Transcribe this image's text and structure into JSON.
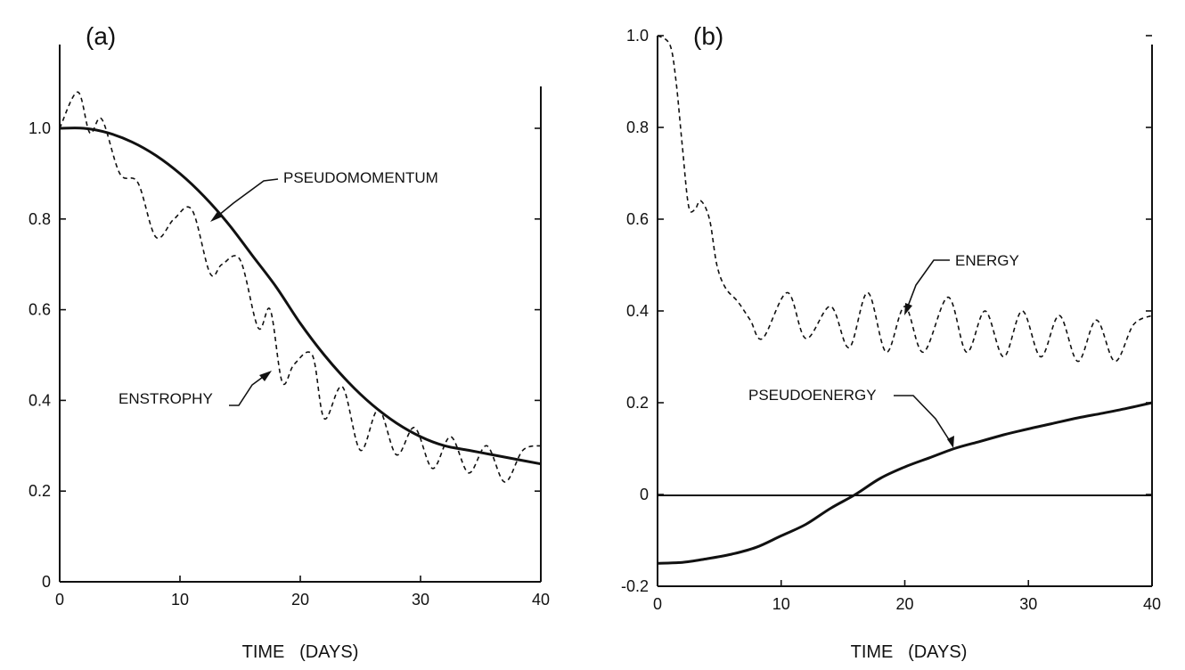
{
  "chart_data": [
    {
      "type": "line",
      "panel_label": "(a)",
      "xlabel": "TIME   (DAYS)",
      "ylabel": "",
      "xlim": [
        0,
        40
      ],
      "ylim": [
        0,
        1.0
      ],
      "xticks": [
        "0",
        "10",
        "20",
        "30",
        "40"
      ],
      "yticks": [
        "0",
        "0.2",
        "0.4",
        "0.6",
        "0.8",
        "1.0"
      ],
      "grid": false,
      "series": [
        {
          "name": "PSEUDOMOMENTUM",
          "style": "solid",
          "x": [
            0,
            2,
            4,
            6,
            8,
            10,
            12,
            14,
            16,
            18,
            20,
            22,
            24,
            26,
            28,
            30,
            32,
            34,
            36,
            38,
            40
          ],
          "y": [
            1.0,
            1.0,
            0.99,
            0.97,
            0.94,
            0.9,
            0.85,
            0.79,
            0.72,
            0.65,
            0.57,
            0.5,
            0.44,
            0.39,
            0.35,
            0.32,
            0.3,
            0.29,
            0.28,
            0.27,
            0.26
          ]
        },
        {
          "name": "ENSTROPHY",
          "style": "dashed",
          "x": [
            0,
            1.5,
            2.5,
            3.5,
            5,
            6.5,
            8,
            9.5,
            11,
            12.5,
            13.5,
            15,
            16.5,
            17.5,
            18.5,
            19.5,
            21,
            22,
            23.5,
            25,
            26.5,
            28,
            29.5,
            31,
            32.5,
            34,
            35.5,
            37,
            38.5,
            40
          ],
          "y": [
            1.0,
            1.08,
            0.99,
            1.02,
            0.9,
            0.88,
            0.76,
            0.8,
            0.82,
            0.68,
            0.7,
            0.71,
            0.56,
            0.6,
            0.44,
            0.48,
            0.5,
            0.36,
            0.43,
            0.29,
            0.38,
            0.28,
            0.34,
            0.25,
            0.32,
            0.24,
            0.3,
            0.22,
            0.29,
            0.3
          ]
        }
      ],
      "annotations": [
        "PSEUDOMOMENTUM",
        "ENSTROPHY"
      ]
    },
    {
      "type": "line",
      "panel_label": "(b)",
      "xlabel": "TIME   (DAYS)",
      "ylabel": "",
      "xlim": [
        0,
        40
      ],
      "ylim": [
        -0.2,
        1.0
      ],
      "xticks": [
        "0",
        "10",
        "20",
        "30",
        "40"
      ],
      "yticks": [
        "-0.2",
        "0",
        "0.2",
        "0.4",
        "0.6",
        "0.8",
        "1.0"
      ],
      "grid": false,
      "series": [
        {
          "name": "ENERGY",
          "style": "dashed",
          "x": [
            0,
            1,
            1.5,
            2,
            2.5,
            3,
            3.5,
            4.2,
            4.8,
            5.5,
            6.5,
            7.5,
            8.5,
            10.5,
            12,
            14,
            15.5,
            17,
            18.5,
            20,
            21.5,
            23.5,
            25,
            26.5,
            28,
            29.5,
            31,
            32.5,
            34,
            35.5,
            37,
            38.5,
            40
          ],
          "y": [
            1.0,
            0.98,
            0.9,
            0.76,
            0.63,
            0.62,
            0.64,
            0.6,
            0.5,
            0.45,
            0.42,
            0.38,
            0.34,
            0.44,
            0.34,
            0.41,
            0.32,
            0.44,
            0.31,
            0.41,
            0.31,
            0.43,
            0.31,
            0.4,
            0.3,
            0.4,
            0.3,
            0.39,
            0.29,
            0.38,
            0.29,
            0.37,
            0.39
          ]
        },
        {
          "name": "PSEUDOENERGY",
          "style": "solid",
          "x": [
            0,
            2,
            4,
            6,
            8,
            10,
            12,
            14,
            16,
            18,
            20,
            22,
            24,
            26,
            28,
            30,
            32,
            34,
            36,
            38,
            40
          ],
          "y": [
            -0.15,
            -0.148,
            -0.14,
            -0.13,
            -0.115,
            -0.09,
            -0.065,
            -0.03,
            0.0,
            0.035,
            0.06,
            0.08,
            0.1,
            0.115,
            0.13,
            0.143,
            0.155,
            0.167,
            0.177,
            0.188,
            0.2
          ]
        }
      ],
      "annotations": [
        "ENERGY",
        "PSEUDOENERGY"
      ]
    }
  ]
}
